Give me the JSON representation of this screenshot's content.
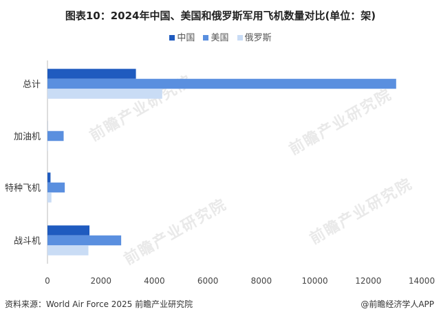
{
  "chart_data": {
    "type": "bar",
    "orientation": "horizontal",
    "title": "图表10：2024年中国、美国和俄罗斯军用飞机数量对比(单位：架)",
    "categories": [
      "总计",
      "加油机",
      "特种飞机",
      "战斗机"
    ],
    "series": [
      {
        "name": "中国",
        "color": "#1f5bbf",
        "values": [
          3309,
          3,
          114,
          1571
        ]
      },
      {
        "name": "美国",
        "color": "#5a8fdf",
        "values": [
          13043,
          605,
          647,
          2757
        ]
      },
      {
        "name": "俄罗斯",
        "color": "#c9dcf5",
        "values": [
          4292,
          18,
          148,
          1531
        ]
      }
    ],
    "xlim": [
      0,
      14000
    ],
    "xticks": [
      0,
      2000,
      4000,
      6000,
      8000,
      10000,
      12000,
      14000
    ],
    "legend_position": "top-center",
    "grid": false
  },
  "footer": {
    "source": "资料来源：World Air Force 2025 前瞻产业研究院",
    "brand": "@前瞻经济学人APP"
  },
  "watermark": {
    "text": "前瞻产业研究院"
  }
}
